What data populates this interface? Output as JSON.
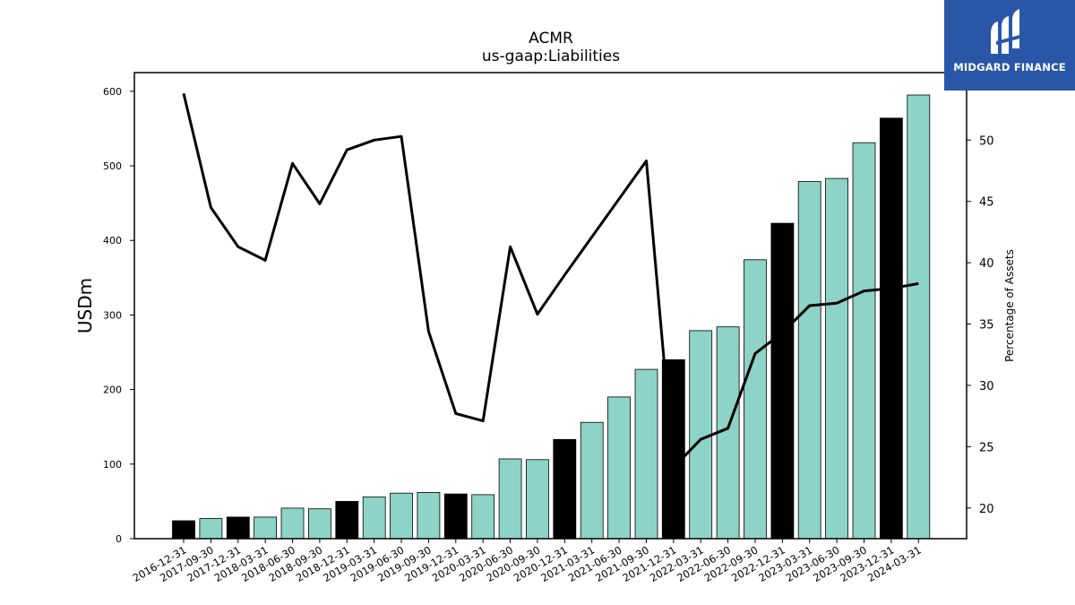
{
  "chart_data": {
    "type": "bar",
    "title": "ACMR",
    "subtitle": "us-gaap:Liabilities",
    "ylabel": "USDm",
    "y2label": "Percentage of Assets",
    "ylim": [
      0,
      625
    ],
    "y2lim": [
      17.5,
      55.5
    ],
    "yticks": [
      0,
      100,
      200,
      300,
      400,
      500,
      600
    ],
    "y2ticks": [
      20,
      25,
      30,
      35,
      40,
      45,
      50
    ],
    "categories": [
      "2016-12-31",
      "2017-09-30",
      "2017-12-31",
      "2018-03-31",
      "2018-06-30",
      "2018-09-30",
      "2018-12-31",
      "2019-03-31",
      "2019-06-30",
      "2019-09-30",
      "2019-12-31",
      "2020-03-31",
      "2020-06-30",
      "2020-09-30",
      "2020-12-31",
      "2021-03-31",
      "2021-06-30",
      "2021-09-30",
      "2021-12-31",
      "2022-03-31",
      "2022-06-30",
      "2022-09-30",
      "2022-12-31",
      "2023-03-31",
      "2023-06-30",
      "2023-09-30",
      "2023-12-31",
      "2024-03-31"
    ],
    "series": [
      {
        "type": "bar",
        "values": [
          24,
          27,
          29,
          29,
          41,
          40,
          50,
          56,
          61,
          62,
          60,
          59,
          107,
          106,
          133,
          156,
          190,
          227,
          240,
          279,
          284,
          374,
          423,
          479,
          483,
          531,
          564,
          595
        ],
        "annual_highlight": [
          true,
          false,
          true,
          false,
          false,
          false,
          true,
          false,
          false,
          false,
          true,
          false,
          false,
          false,
          true,
          false,
          false,
          false,
          true,
          false,
          false,
          false,
          true,
          false,
          false,
          false,
          true,
          false
        ]
      },
      {
        "type": "line",
        "axis": "right",
        "values": [
          53.8,
          44.5,
          41.3,
          40.2,
          48.1,
          44.8,
          49.2,
          50.0,
          50.3,
          34.4,
          27.7,
          27.1,
          41.3,
          35.8,
          39.0,
          42.1,
          45.2,
          48.3,
          23.3,
          25.6,
          26.5,
          32.6,
          34.3,
          36.5,
          36.7,
          37.7,
          37.9,
          38.3
        ]
      }
    ],
    "colors": {
      "bar_regular": "#8dd3c7",
      "bar_annual": "#000000",
      "line": "#000000"
    },
    "grid": false,
    "legend": "none"
  },
  "logo": {
    "text": "MIDGARD FINANCE"
  }
}
